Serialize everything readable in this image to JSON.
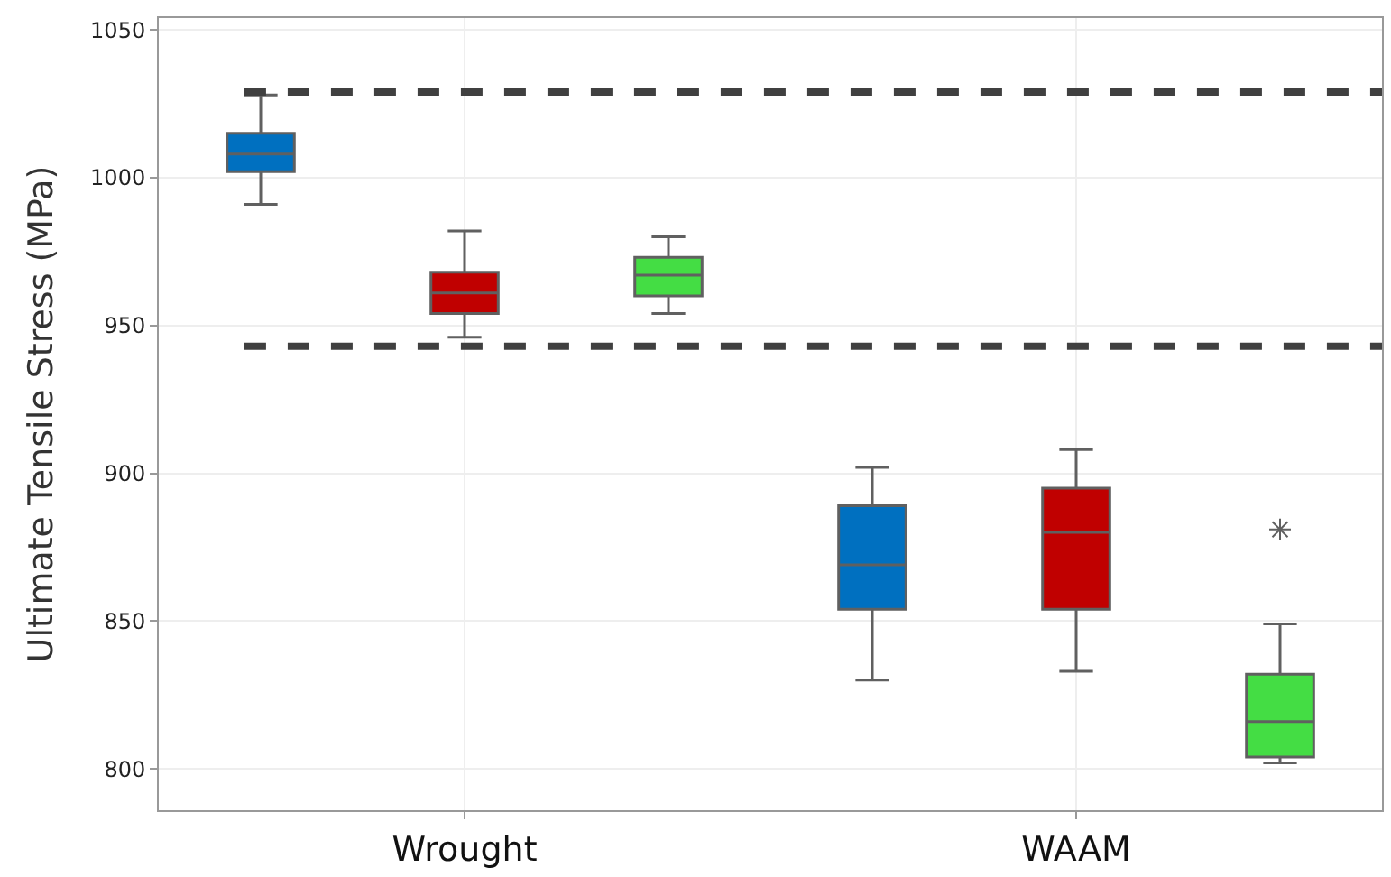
{
  "chart_data": {
    "type": "box",
    "ylabel": "Ultimate Tensile Stress (MPa)",
    "categories": [
      "Wrought",
      "WAAM"
    ],
    "series": [
      {
        "color": "#0070c0",
        "boxes": [
          {
            "low": 991,
            "q1": 1002,
            "median": 1008,
            "q3": 1015,
            "high": 1028
          },
          {
            "low": 830,
            "q1": 854,
            "median": 869,
            "q3": 889,
            "high": 902
          }
        ]
      },
      {
        "color": "#c00000",
        "boxes": [
          {
            "low": 946,
            "q1": 954,
            "median": 961,
            "q3": 968,
            "high": 982
          },
          {
            "low": 833,
            "q1": 854,
            "median": 880,
            "q3": 895,
            "high": 908
          }
        ]
      },
      {
        "color": "#44dd44",
        "boxes": [
          {
            "low": 954,
            "q1": 960,
            "median": 967,
            "q3": 973,
            "high": 980
          },
          {
            "low": 802,
            "q1": 804,
            "median": 816,
            "q3": 832,
            "high": 849,
            "outliers": [
              881
            ]
          }
        ]
      }
    ],
    "ylim": [
      786,
      1054
    ],
    "yticks": [
      800,
      850,
      900,
      950,
      1000,
      1050
    ],
    "ref_lines": [
      {
        "axis": "y",
        "value": 1029,
        "color": "#404040",
        "line_style": "dashed"
      },
      {
        "axis": "y",
        "value": 943,
        "color": "#404040",
        "line_style": "dashed"
      }
    ],
    "grid": true
  }
}
